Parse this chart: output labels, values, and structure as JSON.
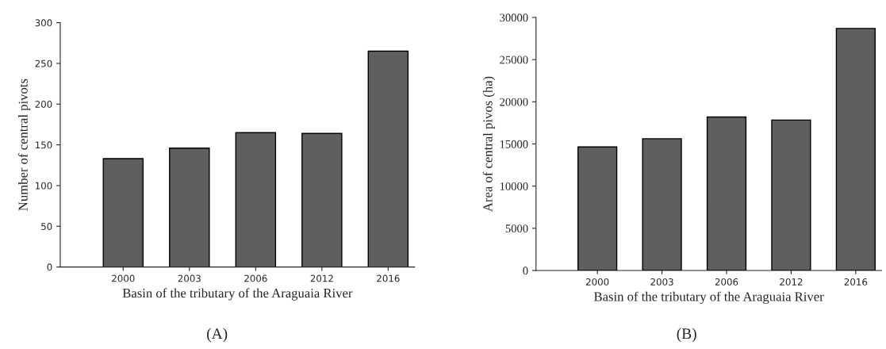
{
  "chart_data": [
    {
      "type": "bar",
      "categories": [
        "2000",
        "2003",
        "2006",
        "2012",
        "2016"
      ],
      "values": [
        133,
        146,
        165,
        164,
        265
      ],
      "color": "#5f5f5f",
      "xlabel": "Basin of the tributary of the Araguaia River",
      "ylabel": "Number of central pivots",
      "ylim": [
        0,
        300
      ],
      "yticks": [
        0,
        50,
        100,
        150,
        200,
        250,
        300
      ],
      "annotations": [
        "(A)"
      ]
    },
    {
      "type": "bar",
      "categories": [
        "2000",
        "2003",
        "2006",
        "2012",
        "2016"
      ],
      "values": [
        14650,
        15620,
        18200,
        17830,
        28700
      ],
      "color": "#5f5f5f",
      "xlabel": "Basin of the tributary of the Araguaia River",
      "ylabel": "Area of central pivos (ha)",
      "ylim": [
        0,
        30000
      ],
      "yticks": [
        0,
        5000,
        10000,
        15000,
        20000,
        25000,
        30000
      ],
      "annotations": [
        "(B)"
      ]
    }
  ]
}
